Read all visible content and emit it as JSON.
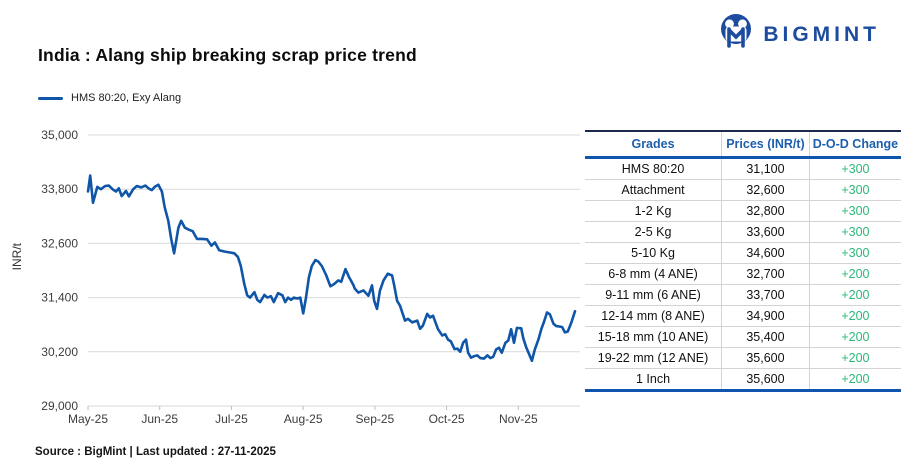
{
  "header": {
    "title": "India : Alang ship breaking scrap price trend",
    "logo_text": "BIGMINT"
  },
  "chart_data": {
    "type": "line",
    "title": "India : Alang ship breaking scrap price trend",
    "xlabel": "",
    "ylabel": "INR/t",
    "legend": [
      "HMS 80:20, Exy Alang"
    ],
    "legend_position": "top-left",
    "grid": "horizontal",
    "ylim": [
      29000,
      35000
    ],
    "yticks": [
      35000,
      33800,
      32600,
      31400,
      30200,
      29000
    ],
    "ytick_labels": [
      "35,000",
      "33,800",
      "32,600",
      "31,400",
      "30,200",
      "29,000"
    ],
    "xtick_labels": [
      "May-25",
      "Jun-25",
      "Jul-25",
      "Aug-25",
      "Sep-25",
      "Oct-25",
      "Nov-25"
    ],
    "xlim_months": [
      0,
      6.86
    ],
    "last_value": 31100,
    "series": [
      {
        "name": "HMS 80:20, Exy Alang",
        "color": "#0f55a8",
        "points": [
          [
            0,
            33750
          ],
          [
            0.03,
            34100
          ],
          [
            0.07,
            33500
          ],
          [
            0.13,
            33850
          ],
          [
            0.18,
            33800
          ],
          [
            0.24,
            33870
          ],
          [
            0.29,
            33880
          ],
          [
            0.35,
            33790
          ],
          [
            0.39,
            33750
          ],
          [
            0.43,
            33820
          ],
          [
            0.47,
            33650
          ],
          [
            0.53,
            33760
          ],
          [
            0.57,
            33640
          ],
          [
            0.63,
            33800
          ],
          [
            0.68,
            33870
          ],
          [
            0.74,
            33840
          ],
          [
            0.8,
            33880
          ],
          [
            0.85,
            33810
          ],
          [
            0.89,
            33780
          ],
          [
            0.93,
            33850
          ],
          [
            0.98,
            33900
          ],
          [
            1.03,
            33750
          ],
          [
            1.07,
            33400
          ],
          [
            1.12,
            33100
          ],
          [
            1.16,
            32700
          ],
          [
            1.2,
            32380
          ],
          [
            1.26,
            32950
          ],
          [
            1.3,
            33100
          ],
          [
            1.35,
            32950
          ],
          [
            1.41,
            32900
          ],
          [
            1.46,
            32870
          ],
          [
            1.52,
            32700
          ],
          [
            1.59,
            32700
          ],
          [
            1.66,
            32690
          ],
          [
            1.72,
            32550
          ],
          [
            1.77,
            32620
          ],
          [
            1.83,
            32450
          ],
          [
            1.9,
            32420
          ],
          [
            1.97,
            32400
          ],
          [
            2.04,
            32380
          ],
          [
            2.09,
            32300
          ],
          [
            2.13,
            32100
          ],
          [
            2.18,
            31700
          ],
          [
            2.22,
            31450
          ],
          [
            2.26,
            31400
          ],
          [
            2.32,
            31520
          ],
          [
            2.36,
            31350
          ],
          [
            2.4,
            31300
          ],
          [
            2.46,
            31460
          ],
          [
            2.5,
            31400
          ],
          [
            2.55,
            31430
          ],
          [
            2.59,
            31300
          ],
          [
            2.65,
            31500
          ],
          [
            2.71,
            31450
          ],
          [
            2.75,
            31300
          ],
          [
            2.79,
            31400
          ],
          [
            2.83,
            31350
          ],
          [
            2.87,
            31400
          ],
          [
            2.92,
            31380
          ],
          [
            2.96,
            31400
          ],
          [
            3.0,
            31050
          ],
          [
            3.04,
            31400
          ],
          [
            3.08,
            31850
          ],
          [
            3.12,
            32100
          ],
          [
            3.17,
            32230
          ],
          [
            3.21,
            32200
          ],
          [
            3.26,
            32100
          ],
          [
            3.32,
            31900
          ],
          [
            3.38,
            31650
          ],
          [
            3.43,
            31700
          ],
          [
            3.49,
            31780
          ],
          [
            3.53,
            31750
          ],
          [
            3.59,
            32030
          ],
          [
            3.64,
            31850
          ],
          [
            3.7,
            31680
          ],
          [
            3.72,
            31600
          ],
          [
            3.77,
            31510
          ],
          [
            3.84,
            31560
          ],
          [
            3.91,
            31440
          ],
          [
            3.96,
            31670
          ],
          [
            3.99,
            31330
          ],
          [
            4.03,
            31150
          ],
          [
            4.07,
            31550
          ],
          [
            4.12,
            31780
          ],
          [
            4.18,
            31930
          ],
          [
            4.24,
            31890
          ],
          [
            4.27,
            31670
          ],
          [
            4.31,
            31330
          ],
          [
            4.35,
            31220
          ],
          [
            4.42,
            30890
          ],
          [
            4.46,
            30930
          ],
          [
            4.52,
            30850
          ],
          [
            4.59,
            30890
          ],
          [
            4.63,
            30710
          ],
          [
            4.67,
            30780
          ],
          [
            4.73,
            31040
          ],
          [
            4.77,
            30960
          ],
          [
            4.81,
            31000
          ],
          [
            4.88,
            30700
          ],
          [
            4.94,
            30560
          ],
          [
            4.98,
            30590
          ],
          [
            5.02,
            30470
          ],
          [
            5.06,
            30430
          ],
          [
            5.11,
            30260
          ],
          [
            5.15,
            30270
          ],
          [
            5.19,
            30200
          ],
          [
            5.23,
            30400
          ],
          [
            5.27,
            30470
          ],
          [
            5.3,
            30180
          ],
          [
            5.34,
            30070
          ],
          [
            5.38,
            30100
          ],
          [
            5.43,
            30120
          ],
          [
            5.47,
            30060
          ],
          [
            5.52,
            30050
          ],
          [
            5.57,
            30120
          ],
          [
            5.61,
            30060
          ],
          [
            5.65,
            30090
          ],
          [
            5.69,
            30250
          ],
          [
            5.73,
            30290
          ],
          [
            5.77,
            30180
          ],
          [
            5.82,
            30400
          ],
          [
            5.86,
            30450
          ],
          [
            5.9,
            30700
          ],
          [
            5.94,
            30400
          ],
          [
            5.98,
            30730
          ],
          [
            6.04,
            30720
          ],
          [
            6.07,
            30500
          ],
          [
            6.11,
            30300
          ],
          [
            6.15,
            30150
          ],
          [
            6.19,
            30000
          ],
          [
            6.23,
            30250
          ],
          [
            6.28,
            30470
          ],
          [
            6.32,
            30700
          ],
          [
            6.36,
            30870
          ],
          [
            6.4,
            31070
          ],
          [
            6.44,
            31030
          ],
          [
            6.49,
            30820
          ],
          [
            6.53,
            30770
          ],
          [
            6.57,
            30760
          ],
          [
            6.61,
            30750
          ],
          [
            6.65,
            30630
          ],
          [
            6.69,
            30650
          ],
          [
            6.74,
            30850
          ],
          [
            6.79,
            31100
          ]
        ]
      }
    ]
  },
  "table": {
    "columns": [
      "Grades",
      "Prices (INR/t)",
      "D-O-D Change"
    ],
    "rows": [
      [
        "HMS 80:20",
        "31,100",
        "+300"
      ],
      [
        "Attachment",
        "32,600",
        "+300"
      ],
      [
        "1-2 Kg",
        "32,800",
        "+300"
      ],
      [
        "2-5 Kg",
        "33,600",
        "+300"
      ],
      [
        "5-10 Kg",
        "34,600",
        "+300"
      ],
      [
        "6-8 mm (4 ANE)",
        "32,700",
        "+200"
      ],
      [
        "9-11 mm (6 ANE)",
        "33,700",
        "+200"
      ],
      [
        "12-14 mm (8 ANE)",
        "34,900",
        "+200"
      ],
      [
        "15-18 mm (10 ANE)",
        "35,400",
        "+200"
      ],
      [
        "19-22 mm (12 ANE)",
        "35,600",
        "+200"
      ],
      [
        "1 Inch",
        "35,600",
        "+200"
      ]
    ]
  },
  "footer": {
    "text": "Source : BigMint | Last updated : 27-11-2025"
  },
  "colors": {
    "accent_blue": "#0f55a8",
    "logo_navy": "#1d4c9f",
    "table_header_text": "#1d5fad",
    "table_top_border": "#1b2a4a",
    "table_accent_border": "#0e56ad",
    "positive_green": "#2cb878",
    "grid_gray": "#d9d9d9"
  }
}
